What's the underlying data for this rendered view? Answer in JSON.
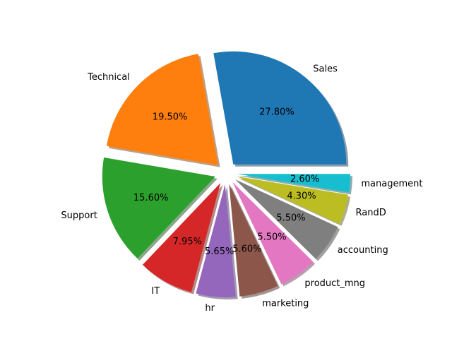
{
  "chart_data": {
    "type": "pie",
    "title": "",
    "slices": [
      {
        "label": "Sales",
        "value": 27.8,
        "pct_label": "27.80%",
        "color": "#1f77b4"
      },
      {
        "label": "Technical",
        "value": 19.5,
        "pct_label": "19.50%",
        "color": "#ff7f0e"
      },
      {
        "label": "Support",
        "value": 15.6,
        "pct_label": "15.60%",
        "color": "#2ca02c"
      },
      {
        "label": "IT",
        "value": 7.95,
        "pct_label": "7.95%",
        "color": "#d62728"
      },
      {
        "label": "hr",
        "value": 5.65,
        "pct_label": "5.65%",
        "color": "#9467bd"
      },
      {
        "label": "marketing",
        "value": 5.6,
        "pct_label": "5.60%",
        "color": "#8c564b"
      },
      {
        "label": "product_mng",
        "value": 5.5,
        "pct_label": "5.50%",
        "color": "#e377c2"
      },
      {
        "label": "accounting",
        "value": 5.5,
        "pct_label": "5.50%",
        "color": "#7f7f7f"
      },
      {
        "label": "RandD",
        "value": 4.3,
        "pct_label": "4.30%",
        "color": "#bcbd22"
      },
      {
        "label": "management",
        "value": 2.6,
        "pct_label": "2.60%",
        "color": "#17becf"
      }
    ],
    "exploded": true,
    "shadow": true,
    "start_angle": "0 degrees (3 o'clock)",
    "direction": "counterclockwise",
    "legend": "none",
    "grid": false
  }
}
